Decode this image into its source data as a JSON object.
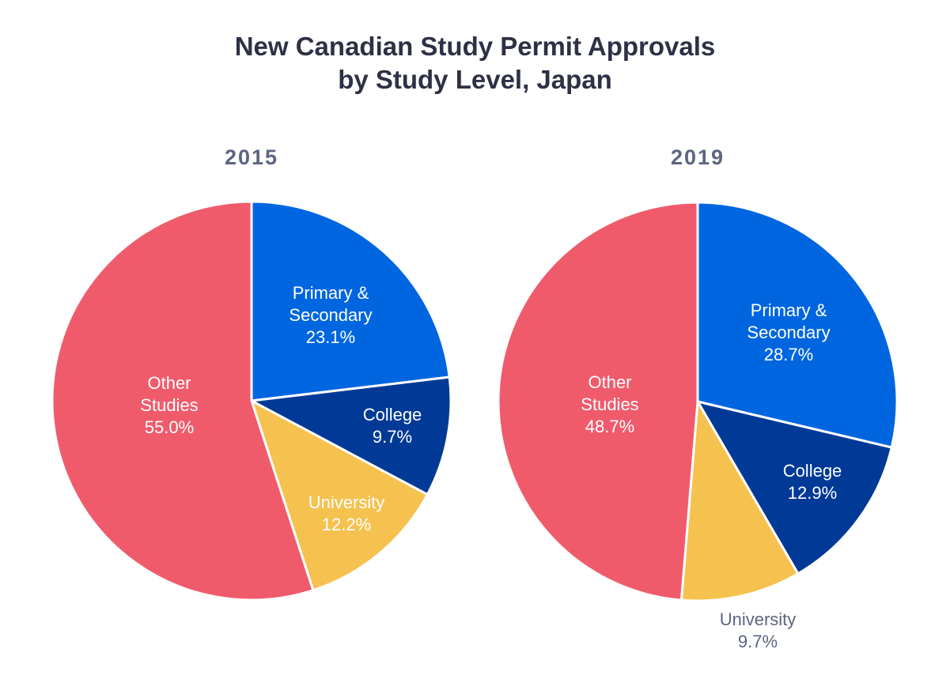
{
  "chart_data": [
    {
      "type": "pie",
      "title": "New Canadian Study Permit Approvals by Study Level, Japan",
      "subtitle": "2015",
      "slices": [
        {
          "label": "Primary & Secondary",
          "value": 23.1,
          "display": "23.1%",
          "color": "#0066e0"
        },
        {
          "label": "College",
          "value": 9.7,
          "display": "9.7%",
          "color": "#003a96"
        },
        {
          "label": "University",
          "value": 12.2,
          "display": "12.2%",
          "color": "#f5c24f"
        },
        {
          "label": "Other Studies",
          "value": 55.0,
          "display": "55.0%",
          "color": "#f05b6c"
        }
      ]
    },
    {
      "type": "pie",
      "title": "New Canadian Study Permit Approvals by Study Level, Japan",
      "subtitle": "2019",
      "slices": [
        {
          "label": "Primary & Secondary",
          "value": 28.7,
          "display": "28.7%",
          "color": "#0066e0"
        },
        {
          "label": "College",
          "value": 12.9,
          "display": "12.9%",
          "color": "#003a96"
        },
        {
          "label": "University",
          "value": 9.7,
          "display": "9.7%",
          "color": "#f5c24f"
        },
        {
          "label": "Other Studies",
          "value": 48.7,
          "display": "48.7%",
          "color": "#f05b6c"
        }
      ]
    }
  ],
  "title_lines": [
    "New Canadian Study Permit Approvals",
    "by Study Level, Japan"
  ],
  "years": [
    "2015",
    "2019"
  ]
}
